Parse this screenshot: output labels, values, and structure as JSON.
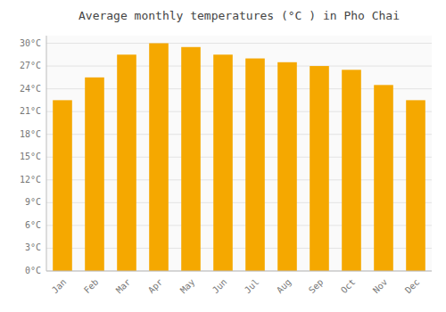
{
  "chart_data": {
    "type": "bar",
    "title": "Average monthly temperatures (°C ) in Pho Chai",
    "categories": [
      "Jan",
      "Feb",
      "Mar",
      "Apr",
      "May",
      "Jun",
      "Jul",
      "Aug",
      "Sep",
      "Oct",
      "Nov",
      "Dec"
    ],
    "values": [
      22.5,
      25.5,
      28.5,
      30.0,
      29.5,
      28.5,
      28.0,
      27.5,
      27.0,
      26.5,
      24.5,
      22.5
    ],
    "color": "#F5A800",
    "ylim": [
      0,
      31
    ],
    "yticks": [
      {
        "value": 0,
        "label": "0°C"
      },
      {
        "value": 3,
        "label": "3°C"
      },
      {
        "value": 6,
        "label": "6°C"
      },
      {
        "value": 9,
        "label": "9°C"
      },
      {
        "value": 12,
        "label": "12°C"
      },
      {
        "value": 15,
        "label": "15°C"
      },
      {
        "value": 18,
        "label": "18°C"
      },
      {
        "value": 21,
        "label": "21°C"
      },
      {
        "value": 24,
        "label": "24°C"
      },
      {
        "value": 27,
        "label": "27°C"
      },
      {
        "value": 30,
        "label": "30°C"
      }
    ],
    "grid": true
  }
}
